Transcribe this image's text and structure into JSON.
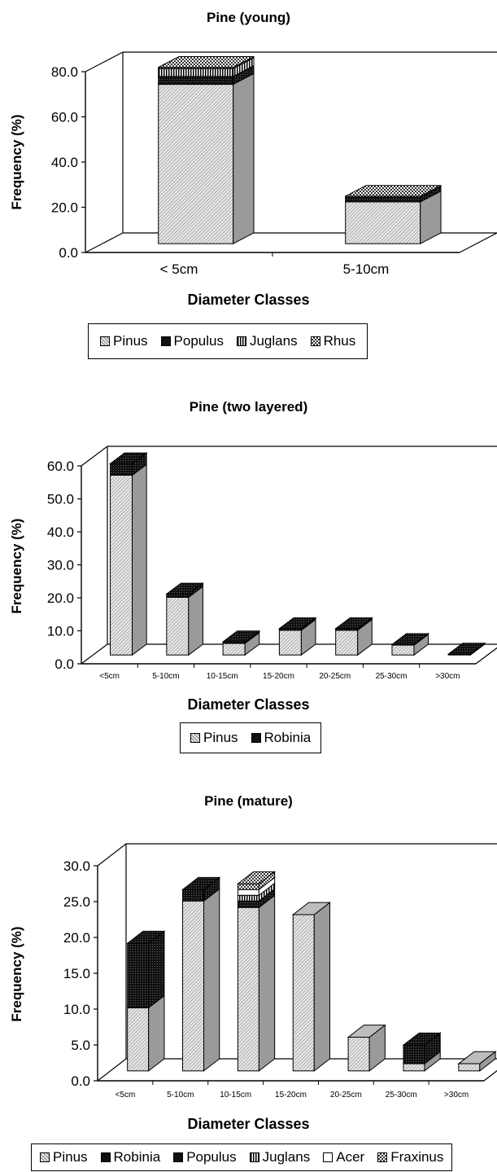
{
  "chart_data": [
    {
      "type": "bar",
      "stacked": true,
      "three_d": true,
      "title": "Pine (young)",
      "xlabel": "Diameter Classes",
      "ylabel": "Frequency (%)",
      "ylim": [
        0,
        80
      ],
      "yticks": [
        "0.0",
        "20.0",
        "40.0",
        "60.0",
        "80.0"
      ],
      "categories": [
        "< 5cm",
        "5-10cm"
      ],
      "series": [
        {
          "name": "Pinus",
          "values": [
            70.5,
            18.5
          ]
        },
        {
          "name": "Populus",
          "values": [
            3.5,
            2.0
          ]
        },
        {
          "name": "Juglans",
          "values": [
            3.5,
            0
          ]
        },
        {
          "name": "Rhus",
          "values": [
            0.5,
            0.5
          ]
        }
      ],
      "legend": "bottom"
    },
    {
      "type": "bar",
      "stacked": true,
      "three_d": true,
      "title": "Pine (two layered)",
      "xlabel": "Diameter Classes",
      "ylabel": "Frequency (%)",
      "ylim": [
        0,
        60
      ],
      "yticks": [
        "0.0",
        "10.0",
        "20.0",
        "30.0",
        "40.0",
        "50.0",
        "60.0"
      ],
      "categories": [
        "<5cm",
        "5-10cm",
        "10-15cm",
        "15-20cm",
        "20-25cm",
        "25-30cm",
        ">30cm"
      ],
      "series": [
        {
          "name": "Pinus",
          "values": [
            54.5,
            17.5,
            3.5,
            7.5,
            7.5,
            3.0,
            0
          ]
        },
        {
          "name": "Robinia",
          "values": [
            3.5,
            1.0,
            0.5,
            0.5,
            0.5,
            0.2,
            0.3
          ]
        }
      ],
      "legend": "bottom"
    },
    {
      "type": "bar",
      "stacked": true,
      "three_d": true,
      "title": "Pine (mature)",
      "xlabel": "Diameter Classes",
      "ylabel": "Frequency (%)",
      "ylim": [
        0,
        30
      ],
      "yticks": [
        "0.0",
        "5.0",
        "10.0",
        "15.0",
        "20.0",
        "25.0",
        "30.0"
      ],
      "categories": [
        "<5cm",
        "5-10cm",
        "10-15cm",
        "15-20cm",
        "20-25cm",
        "25-30cm",
        ">30cm"
      ],
      "series": [
        {
          "name": "Pinus",
          "values": [
            8.8,
            23.7,
            22.8,
            21.8,
            4.7,
            1.0,
            1.0
          ]
        },
        {
          "name": "Robinia",
          "values": [
            9.0,
            1.6,
            0.9,
            0,
            0,
            0,
            0
          ]
        },
        {
          "name": "Populus",
          "values": [
            0,
            0,
            0,
            0,
            0,
            2.6,
            0
          ]
        },
        {
          "name": "Juglans",
          "values": [
            0,
            0,
            0.8,
            0,
            0,
            0,
            0
          ]
        },
        {
          "name": "Acer",
          "values": [
            0,
            0,
            0.8,
            0,
            0,
            0,
            0
          ]
        },
        {
          "name": "Fraxinus",
          "values": [
            0,
            0,
            0.8,
            0,
            0,
            0,
            0
          ]
        }
      ],
      "legend": "bottom"
    }
  ],
  "series_styles": {
    "Pinus": {
      "fill": "#d4d4d4",
      "pattern": "diagonal-fine"
    },
    "Robinia": {
      "fill": "#111111",
      "pattern": "dense-dots"
    },
    "Populus": {
      "fill": "#111111",
      "pattern": "dense-dots"
    },
    "Juglans": {
      "fill": "#ffffff",
      "pattern": "vertical-lines"
    },
    "Rhus": {
      "fill": "#888888",
      "pattern": "checker"
    },
    "Acer": {
      "fill": "#ffffff",
      "pattern": "plain"
    },
    "Fraxinus": {
      "fill": "#888888",
      "pattern": "checker"
    }
  }
}
